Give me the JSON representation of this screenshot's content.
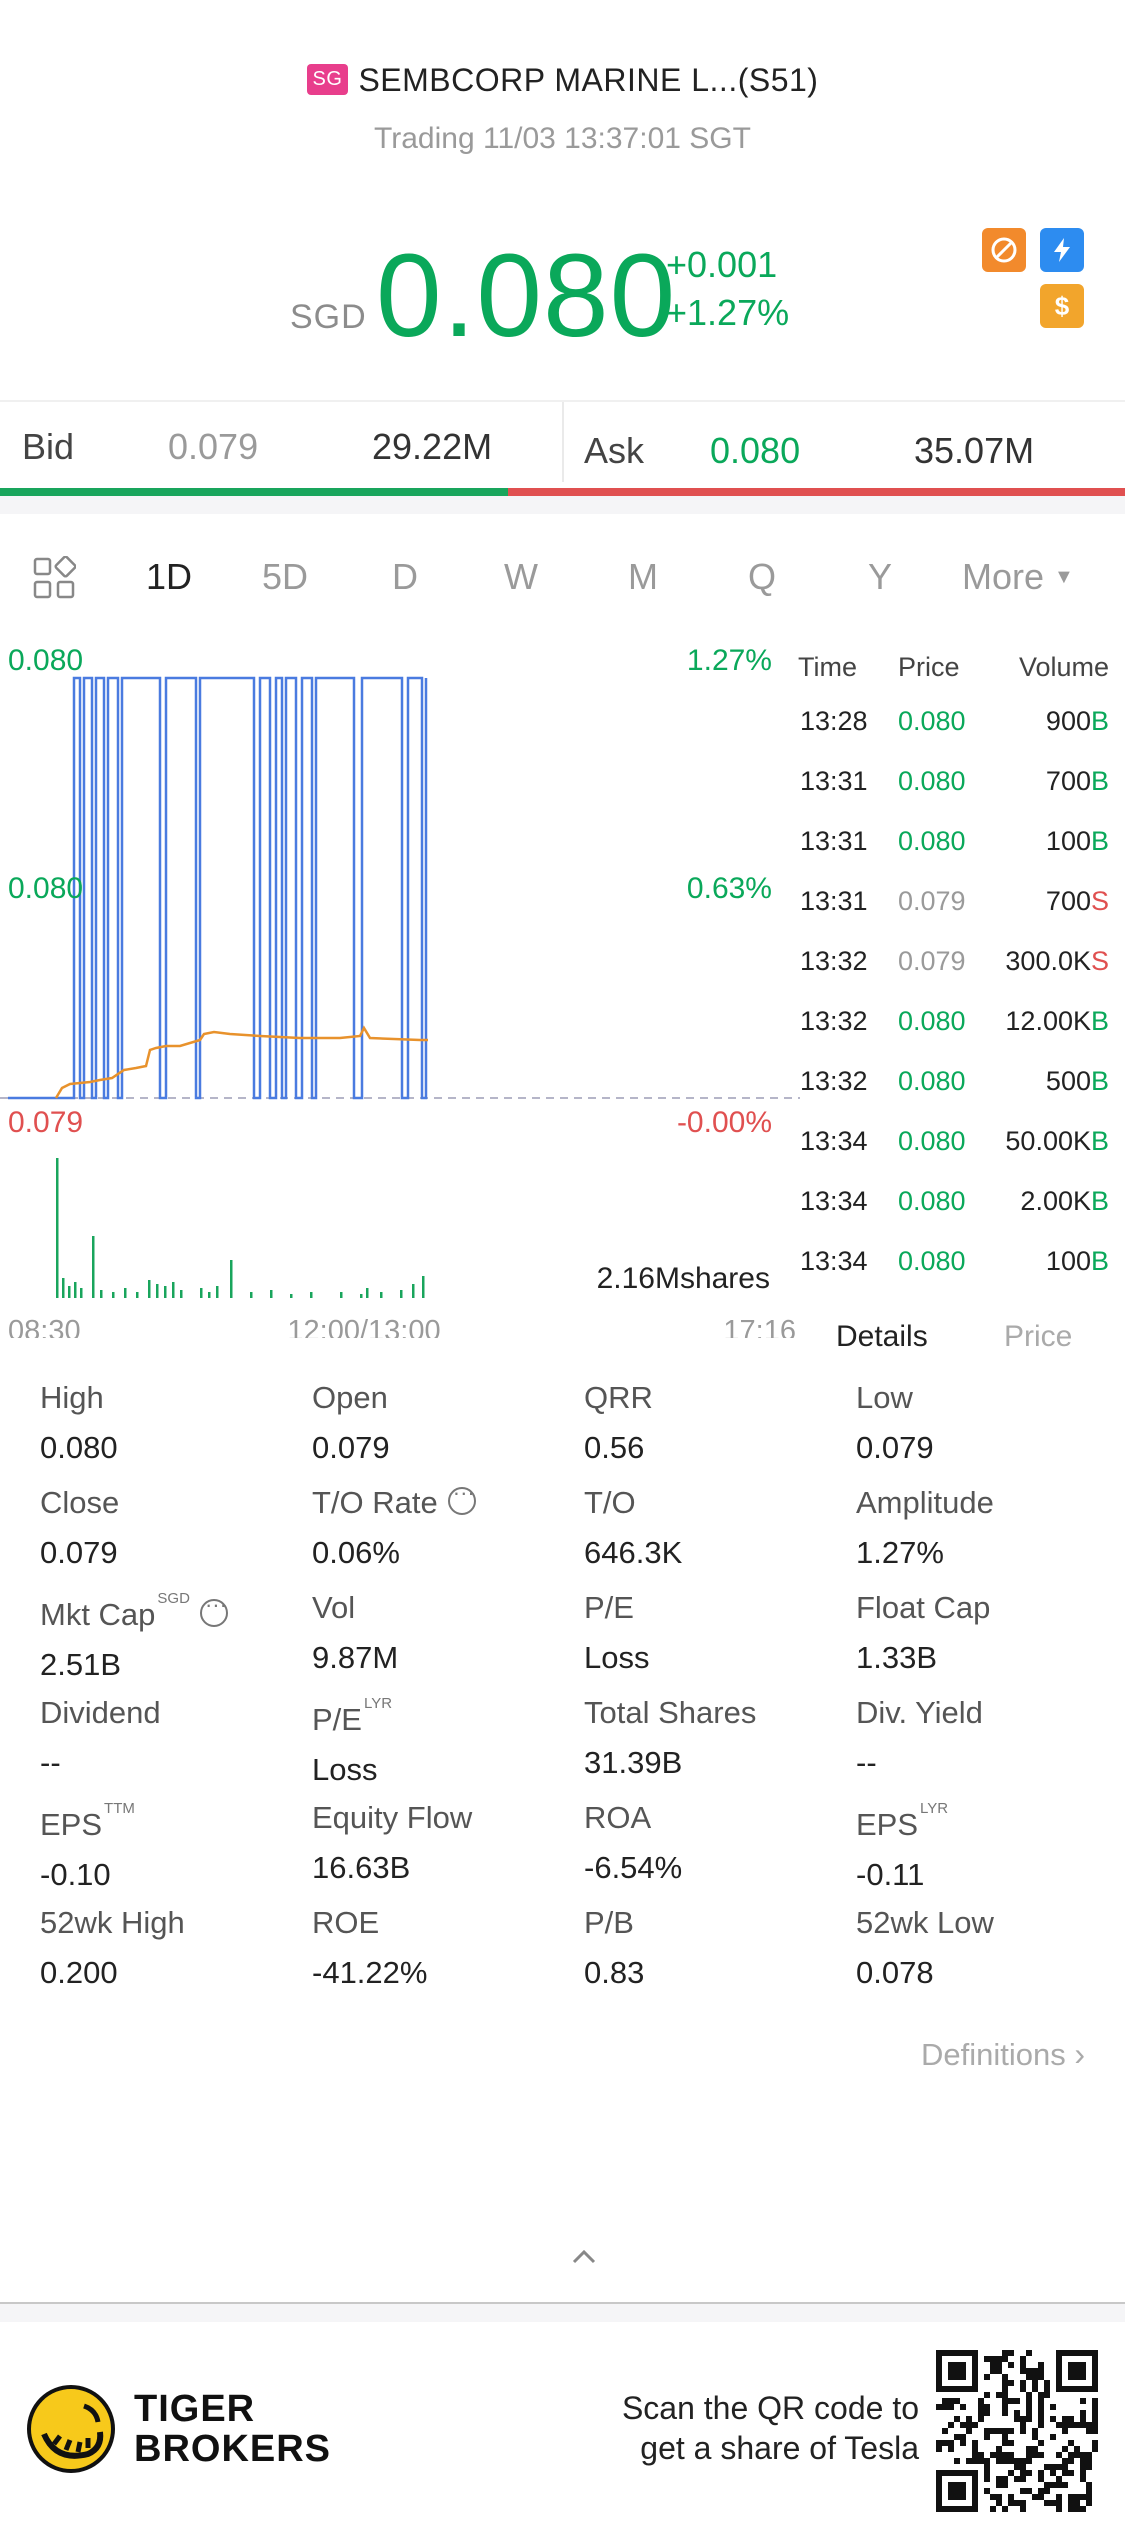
{
  "header": {
    "market_badge": "SG",
    "title": "SEMBCORP MARINE L...(S51)",
    "status": "Trading 11/03 13:37:01 SGT",
    "currency": "SGD",
    "price": "0.080",
    "change_abs": "+0.001",
    "change_pct": "+1.27%",
    "icons": [
      "no-short-icon",
      "lightning-icon",
      "dollar-icon"
    ],
    "colors": {
      "up": "#0aa85a",
      "down": "#e05050",
      "badge": "#e83e8c"
    }
  },
  "bidask": {
    "bid_label": "Bid",
    "bid_price": "0.079",
    "bid_volume": "29.22M",
    "ask_label": "Ask",
    "ask_price": "0.080",
    "ask_volume": "35.07M",
    "bid_share": 0.45
  },
  "tabs": {
    "items": [
      "1D",
      "5D",
      "D",
      "W",
      "M",
      "Q",
      "Y"
    ],
    "more": "More",
    "active": "1D"
  },
  "chart_data": {
    "type": "line",
    "y_left_top": "0.080",
    "y_left_mid": "0.080",
    "y_left_bottom": "0.079",
    "y_right_top": "1.27%",
    "y_right_mid": "0.63%",
    "y_right_bottom": "-0.00%",
    "x_start": "08:30",
    "x_mid": "12:00/13:00",
    "x_end": "17:16",
    "volume_label": "2.16Mshares",
    "ylim": [
      0.079,
      0.08
    ]
  },
  "time_trades": {
    "headers": {
      "time": "Time",
      "price": "Price",
      "volume": "Volume"
    },
    "rows": [
      {
        "time": "13:28",
        "price": "0.080",
        "volume": "900",
        "side": "B"
      },
      {
        "time": "13:31",
        "price": "0.080",
        "volume": "700",
        "side": "B"
      },
      {
        "time": "13:31",
        "price": "0.080",
        "volume": "100",
        "side": "B"
      },
      {
        "time": "13:31",
        "price": "0.079",
        "volume": "700",
        "side": "S"
      },
      {
        "time": "13:32",
        "price": "0.079",
        "volume": "300.0K",
        "side": "S"
      },
      {
        "time": "13:32",
        "price": "0.080",
        "volume": "12.00K",
        "side": "B"
      },
      {
        "time": "13:32",
        "price": "0.080",
        "volume": "500",
        "side": "B"
      },
      {
        "time": "13:34",
        "price": "0.080",
        "volume": "50.00K",
        "side": "B"
      },
      {
        "time": "13:34",
        "price": "0.080",
        "volume": "2.00K",
        "side": "B"
      },
      {
        "time": "13:34",
        "price": "0.080",
        "volume": "100",
        "side": "B"
      }
    ],
    "tab_details": "Details",
    "tab_price": "Price"
  },
  "stats": {
    "rows": [
      [
        {
          "label": "High",
          "value": "0.080"
        },
        {
          "label": "Open",
          "value": "0.079"
        },
        {
          "label": "QRR",
          "value": "0.56"
        },
        {
          "label": "Low",
          "value": "0.079"
        }
      ],
      [
        {
          "label": "Close",
          "value": "0.079"
        },
        {
          "label": "T/O Rate",
          "value": "0.06%"
        },
        {
          "label": "T/O",
          "value": "646.3K"
        },
        {
          "label": "Amplitude",
          "value": "1.27%"
        }
      ],
      [
        {
          "label": "Mkt Cap",
          "sup": "SGD",
          "value": "2.51B"
        },
        {
          "label": "Vol",
          "value": "9.87M"
        },
        {
          "label": "P/E",
          "value": "Loss"
        },
        {
          "label": "Float Cap",
          "value": "1.33B"
        }
      ],
      [
        {
          "label": "Dividend",
          "value": "--"
        },
        {
          "label": "P/E",
          "sup": "LYR",
          "value": "Loss"
        },
        {
          "label": "Total Shares",
          "value": "31.39B"
        },
        {
          "label": "Div. Yield",
          "value": "--"
        }
      ],
      [
        {
          "label": "EPS",
          "sup": "TTM",
          "value": "-0.10"
        },
        {
          "label": "Equity Flow",
          "value": "16.63B"
        },
        {
          "label": "ROA",
          "value": "-6.54%"
        },
        {
          "label": "EPS",
          "sup": "LYR",
          "value": "-0.11"
        }
      ],
      [
        {
          "label": "52wk High",
          "value": "0.200"
        },
        {
          "label": "ROE",
          "value": "-41.22%"
        },
        {
          "label": "P/B",
          "value": "0.83"
        },
        {
          "label": "52wk Low",
          "value": "0.078"
        }
      ]
    ],
    "definitions": "Definitions"
  },
  "footer": {
    "brand_line1": "TIGER",
    "brand_line2": "BROKERS",
    "qr_line1": "Scan the QR code to",
    "qr_line2": "get a share of Tesla"
  }
}
